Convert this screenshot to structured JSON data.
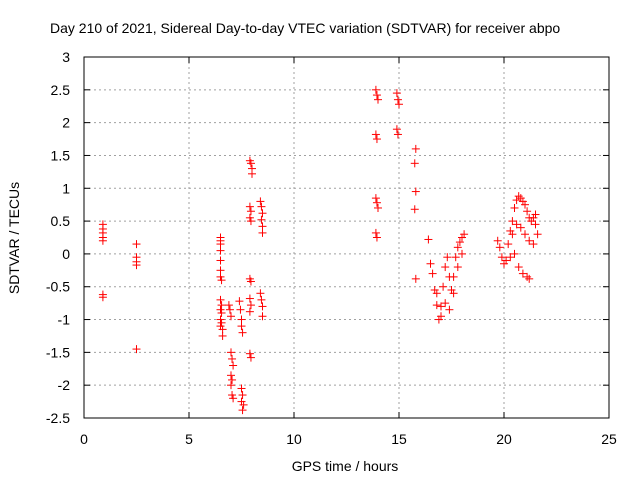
{
  "chart_data": {
    "type": "scatter",
    "title": "Day 210 of 2021, Sidereal Day-to-day VTEC variation (SDTVAR) for receiver abpo",
    "xlabel": "GPS time / hours",
    "ylabel": "SDTVAR / TECUs",
    "xlim": [
      0,
      25
    ],
    "ylim": [
      -2.5,
      3
    ],
    "xticks": [
      0,
      5,
      10,
      15,
      20,
      25
    ],
    "xtick_labels": [
      "0",
      "5",
      "10",
      "15",
      "20",
      "25"
    ],
    "yticks": [
      -2.5,
      -2,
      -1.5,
      -1,
      -0.5,
      0,
      0.5,
      1,
      1.5,
      2,
      2.5,
      3
    ],
    "ytick_labels": [
      "-2.5",
      "-2",
      "-1.5",
      "-1",
      "-0.5",
      "0",
      "0.5",
      "1",
      "1.5",
      "2",
      "2.5",
      "3"
    ],
    "grid": true,
    "marker": "+",
    "marker_color": "#ff0000",
    "series": [
      {
        "name": "SDTVAR",
        "points": [
          [
            0.9,
            0.45
          ],
          [
            0.9,
            0.38
          ],
          [
            0.9,
            0.32
          ],
          [
            0.9,
            0.25
          ],
          [
            0.9,
            0.2
          ],
          [
            0.9,
            -0.62
          ],
          [
            0.9,
            -0.66
          ],
          [
            2.5,
            0.15
          ],
          [
            2.5,
            -0.05
          ],
          [
            2.5,
            -0.12
          ],
          [
            2.5,
            -0.17
          ],
          [
            2.5,
            -1.45
          ],
          [
            6.5,
            0.25
          ],
          [
            6.5,
            0.2
          ],
          [
            6.5,
            0.15
          ],
          [
            6.5,
            0.05
          ],
          [
            6.5,
            -0.1
          ],
          [
            6.5,
            -0.25
          ],
          [
            6.5,
            -0.35
          ],
          [
            6.55,
            -0.4
          ],
          [
            6.5,
            -0.7
          ],
          [
            6.55,
            -0.78
          ],
          [
            6.5,
            -0.85
          ],
          [
            6.55,
            -0.9
          ],
          [
            6.5,
            -1.0
          ],
          [
            6.55,
            -1.05
          ],
          [
            6.5,
            -1.1
          ],
          [
            6.6,
            -1.15
          ],
          [
            6.6,
            -1.25
          ],
          [
            6.9,
            -0.78
          ],
          [
            6.95,
            -0.85
          ],
          [
            7.0,
            -0.95
          ],
          [
            7.0,
            -1.5
          ],
          [
            7.05,
            -1.6
          ],
          [
            7.1,
            -1.7
          ],
          [
            7.0,
            -1.85
          ],
          [
            7.05,
            -1.92
          ],
          [
            7.0,
            -2.0
          ],
          [
            7.05,
            -2.15
          ],
          [
            7.1,
            -2.2
          ],
          [
            7.4,
            -0.72
          ],
          [
            7.45,
            -0.85
          ],
          [
            7.5,
            -1.0
          ],
          [
            7.5,
            -1.1
          ],
          [
            7.55,
            -1.2
          ],
          [
            7.5,
            -2.05
          ],
          [
            7.55,
            -2.15
          ],
          [
            7.5,
            -2.25
          ],
          [
            7.6,
            -2.3
          ],
          [
            7.55,
            -2.38
          ],
          [
            7.9,
            1.42
          ],
          [
            7.95,
            1.38
          ],
          [
            8.0,
            1.3
          ],
          [
            8.0,
            1.22
          ],
          [
            7.9,
            0.72
          ],
          [
            7.95,
            0.65
          ],
          [
            7.9,
            0.55
          ],
          [
            7.95,
            0.5
          ],
          [
            7.9,
            -0.38
          ],
          [
            7.95,
            -0.42
          ],
          [
            7.9,
            -0.68
          ],
          [
            7.95,
            -0.78
          ],
          [
            7.9,
            -0.88
          ],
          [
            7.9,
            -1.52
          ],
          [
            7.95,
            -1.58
          ],
          [
            8.4,
            0.8
          ],
          [
            8.45,
            0.72
          ],
          [
            8.5,
            0.62
          ],
          [
            8.45,
            0.52
          ],
          [
            8.5,
            0.42
          ],
          [
            8.5,
            0.32
          ],
          [
            8.4,
            -0.6
          ],
          [
            8.45,
            -0.7
          ],
          [
            8.5,
            -0.8
          ],
          [
            8.5,
            -0.95
          ],
          [
            13.9,
            2.5
          ],
          [
            13.95,
            2.42
          ],
          [
            14.0,
            2.35
          ],
          [
            13.9,
            1.82
          ],
          [
            13.95,
            1.75
          ],
          [
            13.9,
            0.85
          ],
          [
            13.95,
            0.78
          ],
          [
            14.0,
            0.7
          ],
          [
            13.9,
            0.32
          ],
          [
            13.95,
            0.25
          ],
          [
            14.9,
            2.45
          ],
          [
            14.95,
            2.35
          ],
          [
            15.0,
            2.28
          ],
          [
            14.9,
            1.9
          ],
          [
            14.95,
            1.82
          ],
          [
            15.8,
            1.6
          ],
          [
            15.75,
            1.38
          ],
          [
            15.8,
            0.95
          ],
          [
            15.75,
            0.68
          ],
          [
            15.8,
            -0.38
          ],
          [
            16.4,
            0.22
          ],
          [
            16.5,
            -0.15
          ],
          [
            16.6,
            -0.3
          ],
          [
            16.7,
            -0.55
          ],
          [
            16.8,
            -0.78
          ],
          [
            16.9,
            -1.0
          ],
          [
            17.0,
            -0.8
          ],
          [
            17.1,
            -0.5
          ],
          [
            17.2,
            -0.2
          ],
          [
            17.3,
            -0.05
          ],
          [
            17.4,
            -0.35
          ],
          [
            17.5,
            -0.55
          ],
          [
            17.6,
            -0.35
          ],
          [
            17.7,
            -0.05
          ],
          [
            17.8,
            0.1
          ],
          [
            17.9,
            0.18
          ],
          [
            18.0,
            0.25
          ],
          [
            18.1,
            0.3
          ],
          [
            16.8,
            -0.6
          ],
          [
            17.0,
            -0.95
          ],
          [
            17.2,
            -0.75
          ],
          [
            17.4,
            -0.85
          ],
          [
            17.6,
            -0.6
          ],
          [
            17.8,
            -0.2
          ],
          [
            18.0,
            0.0
          ],
          [
            19.7,
            0.2
          ],
          [
            19.8,
            0.1
          ],
          [
            19.9,
            -0.05
          ],
          [
            20.0,
            -0.15
          ],
          [
            20.1,
            -0.1
          ],
          [
            20.2,
            0.15
          ],
          [
            20.3,
            0.35
          ],
          [
            20.4,
            0.5
          ],
          [
            20.5,
            0.7
          ],
          [
            20.6,
            0.82
          ],
          [
            20.7,
            0.88
          ],
          [
            20.8,
            0.85
          ],
          [
            20.9,
            0.8
          ],
          [
            21.0,
            0.75
          ],
          [
            21.1,
            0.65
          ],
          [
            21.2,
            0.55
          ],
          [
            21.3,
            0.5
          ],
          [
            21.4,
            0.55
          ],
          [
            21.5,
            0.6
          ],
          [
            20.3,
            -0.05
          ],
          [
            20.5,
            0.0
          ],
          [
            20.7,
            -0.2
          ],
          [
            20.9,
            -0.3
          ],
          [
            21.1,
            -0.35
          ],
          [
            21.2,
            -0.38
          ],
          [
            20.4,
            0.3
          ],
          [
            20.6,
            0.45
          ],
          [
            20.8,
            0.4
          ],
          [
            21.0,
            0.3
          ],
          [
            21.2,
            0.2
          ],
          [
            21.4,
            0.15
          ],
          [
            21.5,
            0.45
          ],
          [
            21.6,
            0.3
          ]
        ]
      }
    ]
  }
}
